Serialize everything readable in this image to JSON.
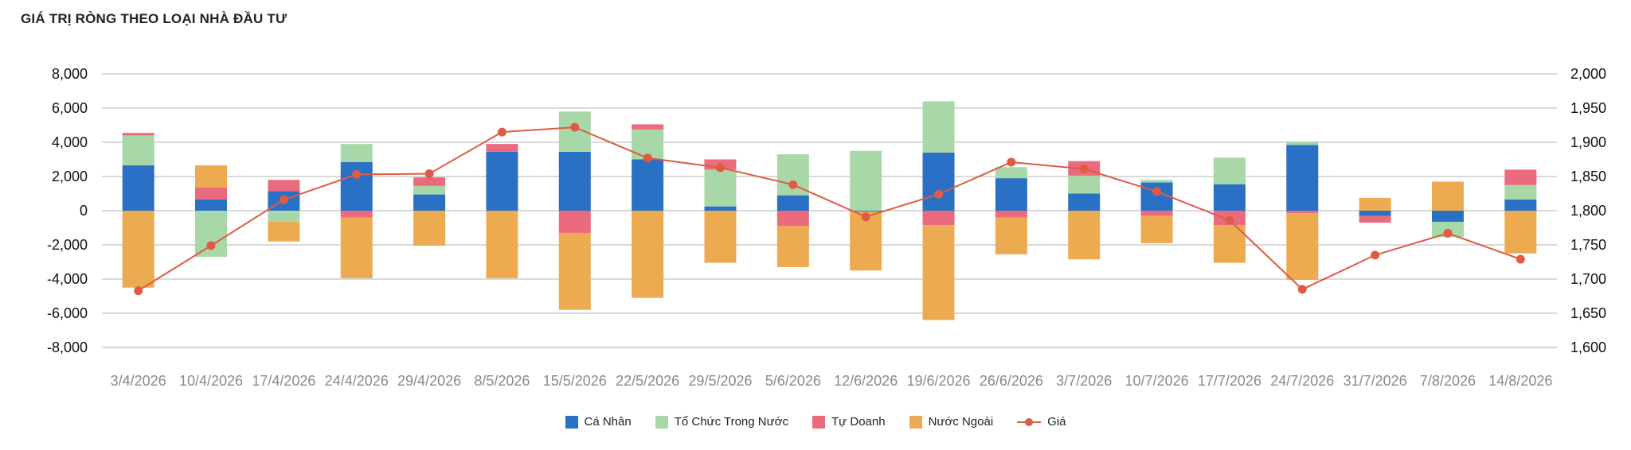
{
  "title": "GIÁ TRỊ RÒNG THEO LOẠI NHÀ ĐẦU TƯ",
  "colors": {
    "ca_nhan": "#2a70c4",
    "to_chuc": "#a8d8a8",
    "tu_doanh": "#ea6b7e",
    "nuoc_ngoai": "#edab51",
    "gia": "#e05a44",
    "grid": "#d9d9d9"
  },
  "legend": [
    {
      "label": "Cá Nhân",
      "type": "box",
      "color": "#2a70c4"
    },
    {
      "label": "Tổ Chức Trong Nước",
      "type": "box",
      "color": "#a8d8a8"
    },
    {
      "label": "Tự Doanh",
      "type": "box",
      "color": "#ea6b7e"
    },
    {
      "label": "Nước Ngoài",
      "type": "box",
      "color": "#edab51"
    },
    {
      "label": "Giá",
      "type": "line",
      "color": "#e05a44"
    }
  ],
  "chart_data": {
    "type": "bar",
    "stacked": true,
    "title": "GIÁ TRỊ RÒNG THEO LOẠI NHÀ ĐẦU TƯ",
    "categories": [
      "3/4/2026",
      "10/4/2026",
      "17/4/2026",
      "24/4/2026",
      "29/4/2026",
      "8/5/2026",
      "15/5/2026",
      "22/5/2026",
      "29/5/2026",
      "5/6/2026",
      "12/6/2026",
      "19/6/2026",
      "26/6/2026",
      "3/7/2026",
      "10/7/2026",
      "17/7/2026",
      "24/7/2026",
      "31/7/2026",
      "7/8/2026",
      "14/8/2026"
    ],
    "ylim": [
      -8000,
      8000
    ],
    "yticks": [
      "8,000",
      "6,000",
      "4,000",
      "2,000",
      "0",
      "-2,000",
      "-4,000",
      "-6,000",
      "-8,000"
    ],
    "y2lim": [
      1600,
      2000
    ],
    "y2ticks": [
      "2,000",
      "1,950",
      "1,900",
      "1,850",
      "1,800",
      "1,750",
      "1,700",
      "1,650",
      "1,600"
    ],
    "grid": true,
    "legend_position": "bottom",
    "series": [
      {
        "name": "Cá Nhân",
        "key": "ca_nhan",
        "values": [
          2650,
          650,
          1150,
          2850,
          950,
          3450,
          3450,
          3000,
          250,
          900,
          -50,
          3400,
          1900,
          1000,
          1650,
          1550,
          3850,
          -300,
          -650,
          650
        ]
      },
      {
        "name": "Tổ Chức Trong Nước",
        "key": "to_chuc",
        "values": [
          1750,
          -2700,
          -650,
          1050,
          500,
          0,
          2350,
          1750,
          2150,
          2400,
          3500,
          3000,
          650,
          1050,
          150,
          1550,
          200,
          0,
          -900,
          850
        ]
      },
      {
        "name": "Tự Doanh",
        "key": "tu_doanh",
        "values": [
          150,
          700,
          650,
          -400,
          500,
          450,
          -1300,
          300,
          600,
          -900,
          0,
          -850,
          -400,
          850,
          -300,
          -850,
          -150,
          -400,
          0,
          900
        ]
      },
      {
        "name": "Nước Ngoài",
        "key": "nuoc_ngoai",
        "values": [
          -4500,
          1300,
          -1150,
          -3550,
          -2050,
          -3950,
          -4500,
          -5100,
          -3050,
          -2400,
          -3450,
          -5550,
          -2150,
          -2850,
          -1600,
          -2200,
          -3900,
          750,
          1700,
          -2500
        ]
      }
    ],
    "line_series": {
      "name": "Giá",
      "axis": "right",
      "values": [
        1683,
        1749,
        1816,
        1853,
        1854,
        1915,
        1922,
        1877,
        1863,
        1838,
        1791,
        1824,
        1871,
        1861,
        1828,
        1786,
        1685,
        1735,
        1767,
        1729
      ]
    }
  }
}
